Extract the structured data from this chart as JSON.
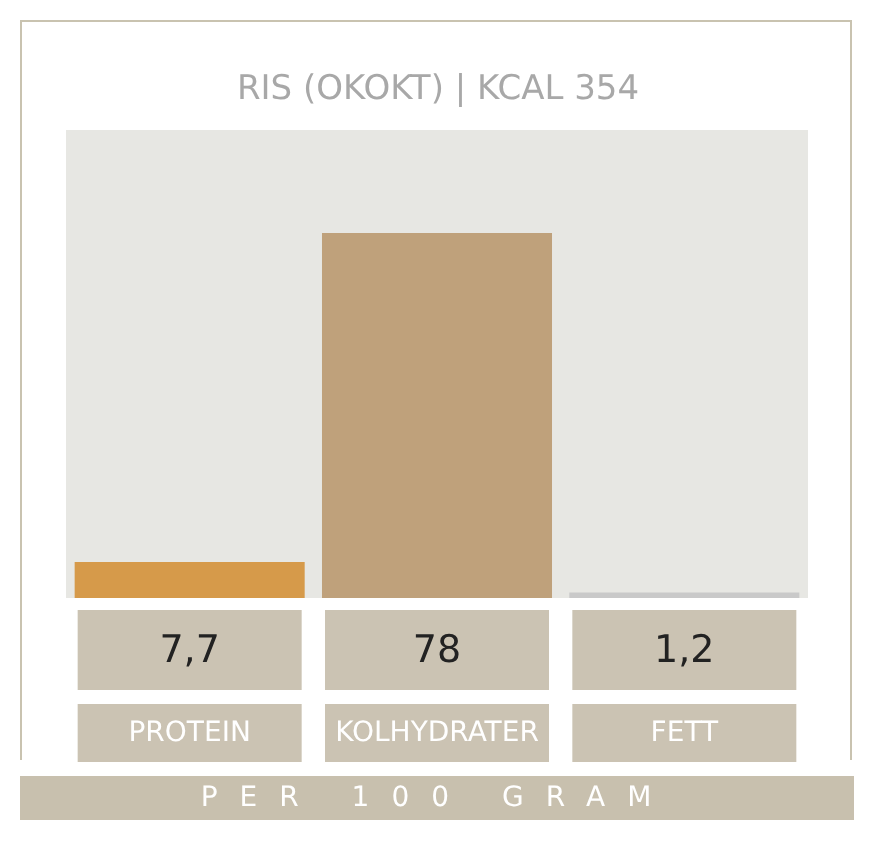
{
  "chart_data": {
    "type": "bar",
    "title": "RIS (OKOKT) | KCAL 354",
    "categories": [
      "PROTEIN",
      "KOLHYDRATER",
      "FETT"
    ],
    "values": [
      7.7,
      78,
      1.2
    ],
    "colors": [
      "#d69a4a",
      "#bfa17b",
      "#c9c9c9"
    ],
    "value_labels": [
      "7,7",
      "78",
      "1,2"
    ],
    "ylim": [
      0,
      100
    ],
    "annotations": [
      "PER 100 GRAM"
    ]
  }
}
